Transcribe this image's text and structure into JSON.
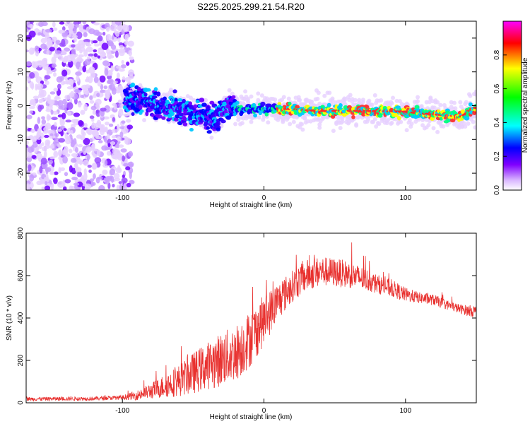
{
  "title": "S225.2025.299.21.54.R20",
  "chart_data": [
    {
      "type": "heatmap",
      "xlabel": "Height of straight line (km)",
      "ylabel": "Frequency (Hz)",
      "xlim": [
        -168,
        150
      ],
      "ylim": [
        -25,
        25
      ],
      "xticks": [
        -100,
        0,
        100
      ],
      "yticks": [
        -20,
        -10,
        0,
        10,
        20
      ],
      "colorbar": {
        "label": "Normalized spectral amplitude",
        "ticks": [
          0.0,
          0.2,
          0.4,
          0.6,
          0.8
        ],
        "range": [
          0,
          1
        ],
        "colors": [
          "#ffffff",
          "#d8b4ff",
          "#8000ff",
          "#0000ff",
          "#00ffff",
          "#00ff00",
          "#ffff00",
          "#ff0000",
          "#ff00ff"
        ]
      },
      "ridge": [
        [
          -95,
          1.5
        ],
        [
          -80,
          1
        ],
        [
          -60,
          -1
        ],
        [
          -45,
          -2.5
        ],
        [
          -35,
          -4
        ],
        [
          -25,
          0
        ],
        [
          -20,
          -0.5
        ],
        [
          -10,
          -1
        ],
        [
          0,
          -0.8
        ],
        [
          20,
          -1
        ],
        [
          40,
          -1.6
        ],
        [
          60,
          -1.5
        ],
        [
          80,
          -1.6
        ],
        [
          100,
          -1.8
        ],
        [
          120,
          -2.6
        ],
        [
          140,
          -3.2
        ],
        [
          150,
          -0.5
        ]
      ]
    },
    {
      "type": "line",
      "xlabel": "Height of straight line (km)",
      "ylabel": "SNR (10 * v/v)",
      "xlim": [
        -168,
        150
      ],
      "ylim": [
        0,
        800
      ],
      "xticks": [
        -100,
        0,
        100
      ],
      "yticks": [
        0,
        200,
        400,
        600,
        800
      ],
      "series": [
        {
          "name": "SNR",
          "color": "#e8312f",
          "envelope_x": [
            -168,
            -120,
            -100,
            -90,
            -80,
            -70,
            -60,
            -50,
            -40,
            -30,
            -20,
            -10,
            0,
            10,
            20,
            30,
            40,
            50,
            60,
            70,
            80,
            90,
            100,
            110,
            120,
            130,
            140,
            150
          ],
          "envelope_mean": [
            18,
            20,
            25,
            35,
            55,
            80,
            105,
            140,
            175,
            205,
            235,
            300,
            390,
            480,
            550,
            600,
            620,
            615,
            605,
            585,
            560,
            540,
            510,
            495,
            485,
            460,
            440,
            430
          ],
          "envelope_spread": [
            12,
            12,
            14,
            30,
            50,
            75,
            100,
            130,
            150,
            170,
            180,
            180,
            160,
            120,
            100,
            100,
            95,
            90,
            85,
            75,
            60,
            55,
            45,
            35,
            35,
            30,
            30,
            40
          ]
        }
      ]
    }
  ]
}
